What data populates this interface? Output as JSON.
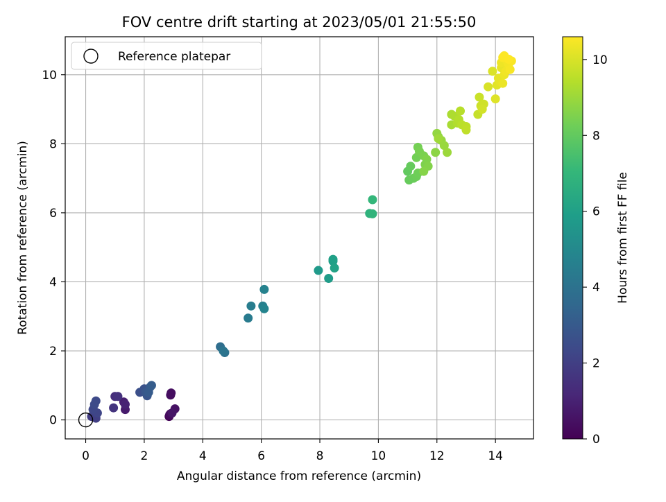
{
  "chart_data": {
    "type": "scatter",
    "title": "FOV centre drift starting at 2023/05/01 21:55:50",
    "xlabel": "Angular distance from reference (arcmin)",
    "ylabel": "Rotation from reference (arcmin)",
    "xlim": [
      -0.7,
      15.3
    ],
    "ylim": [
      -0.55,
      11.1
    ],
    "xticks": [
      0,
      2,
      4,
      6,
      8,
      10,
      12,
      14
    ],
    "yticks": [
      0,
      2,
      4,
      6,
      8,
      10
    ],
    "xtick_labels": [
      "0",
      "2",
      "4",
      "6",
      "8",
      "10",
      "12",
      "14"
    ],
    "ytick_labels": [
      "0",
      "2",
      "4",
      "6",
      "8",
      "10"
    ],
    "grid": true,
    "legend": {
      "placement": "top-left",
      "entries": [
        {
          "label": "Reference platepar",
          "marker": "open-circle"
        }
      ]
    },
    "reference_point": {
      "x": 0.0,
      "y": 0.0
    },
    "colorbar": {
      "label": "Hours from first FF file",
      "range": [
        0,
        10.6
      ],
      "ticks": [
        0,
        2,
        4,
        6,
        8,
        10
      ],
      "tick_labels": [
        "0",
        "2",
        "4",
        "6",
        "8",
        "10"
      ],
      "colormap": "viridis",
      "colors": [
        "#440154",
        "#482878",
        "#3e4989",
        "#31688e",
        "#26828e",
        "#1f9e89",
        "#35b779",
        "#6ece58",
        "#b5de2b",
        "#fde725"
      ]
    },
    "series": [
      {
        "points": [
          [
            2.85,
            0.1,
            0.1
          ],
          [
            2.9,
            0.18,
            0.2
          ],
          [
            2.87,
            0.15,
            0.3
          ],
          [
            2.9,
            0.72,
            0.35
          ],
          [
            2.92,
            0.78,
            0.4
          ],
          [
            3.05,
            0.32,
            0.5
          ],
          [
            2.95,
            0.2,
            0.6
          ],
          [
            1.35,
            0.3,
            0.8
          ],
          [
            1.3,
            0.52,
            0.9
          ],
          [
            1.35,
            0.45,
            1.0
          ],
          [
            1.0,
            0.68,
            1.4
          ],
          [
            1.1,
            0.68,
            1.5
          ],
          [
            0.95,
            0.35,
            1.6
          ],
          [
            0.2,
            0.1,
            1.9
          ],
          [
            0.35,
            0.05,
            2.0
          ],
          [
            0.3,
            0.25,
            2.1
          ],
          [
            0.4,
            0.2,
            2.2
          ],
          [
            0.25,
            0.3,
            2.3
          ],
          [
            0.35,
            0.55,
            2.4
          ],
          [
            0.3,
            0.45,
            2.45
          ],
          [
            1.85,
            0.8,
            2.6
          ],
          [
            2.0,
            0.9,
            2.7
          ],
          [
            2.1,
            0.7,
            2.8
          ],
          [
            2.05,
            0.8,
            2.9
          ],
          [
            2.2,
            0.95,
            3.0
          ],
          [
            2.15,
            0.8,
            3.05
          ],
          [
            2.25,
            1.0,
            3.1
          ],
          [
            4.6,
            2.12,
            3.8
          ],
          [
            4.75,
            1.95,
            4.0
          ],
          [
            4.7,
            2.0,
            4.1
          ],
          [
            5.55,
            2.95,
            4.4
          ],
          [
            5.65,
            3.3,
            4.5
          ],
          [
            6.05,
            3.3,
            4.6
          ],
          [
            6.1,
            3.78,
            4.7
          ],
          [
            6.1,
            3.22,
            4.8
          ],
          [
            7.95,
            4.33,
            5.7
          ],
          [
            8.3,
            4.1,
            5.8
          ],
          [
            8.45,
            4.6,
            5.9
          ],
          [
            8.45,
            4.65,
            6.0
          ],
          [
            8.5,
            4.4,
            6.1
          ],
          [
            9.7,
            5.98,
            6.8
          ],
          [
            9.8,
            5.97,
            6.9
          ],
          [
            9.8,
            6.38,
            7.0
          ],
          [
            11.0,
            7.2,
            8.0
          ],
          [
            11.1,
            7.35,
            8.05
          ],
          [
            11.05,
            6.95,
            8.1
          ],
          [
            11.2,
            7.0,
            8.15
          ],
          [
            11.3,
            7.05,
            8.2
          ],
          [
            11.35,
            7.15,
            8.25
          ],
          [
            11.3,
            7.6,
            8.3
          ],
          [
            11.35,
            7.9,
            8.35
          ],
          [
            11.4,
            7.78,
            8.4
          ],
          [
            11.55,
            7.65,
            8.45
          ],
          [
            11.6,
            7.4,
            8.5
          ],
          [
            11.65,
            7.55,
            8.55
          ],
          [
            11.7,
            7.35,
            8.6
          ],
          [
            11.55,
            7.2,
            8.65
          ],
          [
            11.95,
            7.75,
            8.75
          ],
          [
            12.05,
            8.2,
            8.8
          ],
          [
            12.0,
            8.3,
            8.85
          ],
          [
            12.15,
            8.1,
            8.9
          ],
          [
            12.25,
            7.95,
            8.95
          ],
          [
            12.35,
            7.75,
            9.0
          ],
          [
            12.05,
            8.15,
            9.05
          ],
          [
            12.5,
            8.55,
            9.2
          ],
          [
            12.5,
            8.85,
            9.25
          ],
          [
            12.6,
            8.8,
            9.3
          ],
          [
            12.7,
            8.6,
            9.35
          ],
          [
            12.75,
            8.7,
            9.4
          ],
          [
            12.8,
            8.95,
            9.45
          ],
          [
            12.85,
            8.55,
            9.5
          ],
          [
            13.0,
            8.5,
            9.55
          ],
          [
            13.0,
            8.4,
            9.6
          ],
          [
            13.4,
            8.85,
            9.7
          ],
          [
            13.45,
            9.35,
            9.75
          ],
          [
            13.5,
            9.1,
            9.8
          ],
          [
            13.6,
            9.15,
            9.85
          ],
          [
            13.55,
            9.0,
            9.9
          ],
          [
            13.75,
            9.65,
            10.0
          ],
          [
            13.9,
            10.1,
            10.05
          ],
          [
            14.0,
            9.3,
            10.1
          ],
          [
            14.05,
            9.7,
            10.15
          ],
          [
            14.1,
            9.9,
            10.2
          ],
          [
            14.15,
            9.8,
            10.22
          ],
          [
            14.2,
            10.2,
            10.25
          ],
          [
            14.25,
            9.75,
            10.3
          ],
          [
            14.3,
            10.0,
            10.33
          ],
          [
            14.2,
            10.35,
            10.36
          ],
          [
            14.35,
            10.1,
            10.4
          ],
          [
            14.4,
            10.4,
            10.43
          ],
          [
            14.45,
            10.3,
            10.46
          ],
          [
            14.5,
            10.15,
            10.5
          ],
          [
            14.55,
            10.4,
            10.53
          ],
          [
            14.25,
            10.5,
            10.56
          ],
          [
            14.3,
            10.55,
            10.58
          ],
          [
            14.45,
            10.45,
            10.6
          ]
        ]
      }
    ]
  }
}
